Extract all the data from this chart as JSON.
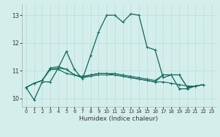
{
  "title": "",
  "xlabel": "Humidex (Indice chaleur)",
  "bg_color": "#d4eeeb",
  "line_color": "#1a6b62",
  "grid_color": "#b8ddd8",
  "xlim": [
    -0.5,
    23.5
  ],
  "ylim": [
    9.7,
    13.4
  ],
  "yticks": [
    10,
    11,
    12,
    13
  ],
  "xticks": [
    0,
    1,
    2,
    3,
    4,
    5,
    6,
    7,
    8,
    9,
    10,
    11,
    12,
    13,
    14,
    15,
    16,
    17,
    18,
    19,
    20,
    21,
    22,
    23
  ],
  "series": [
    [
      10.4,
      9.95,
      10.6,
      10.6,
      11.1,
      11.7,
      11.05,
      10.7,
      11.55,
      12.4,
      13.0,
      13.0,
      12.75,
      13.05,
      13.0,
      11.85,
      11.75,
      10.75,
      10.85,
      10.35,
      10.35,
      10.45,
      10.5
    ],
    [
      10.4,
      10.55,
      10.65,
      11.05,
      11.1,
      11.05,
      10.85,
      10.75,
      10.85,
      10.9,
      10.9,
      10.9,
      10.85,
      10.8,
      10.75,
      10.7,
      10.65,
      10.85,
      10.85,
      10.85,
      10.4,
      10.45,
      10.5
    ],
    [
      10.4,
      10.55,
      10.65,
      11.05,
      11.05,
      10.9,
      10.85,
      10.8,
      10.85,
      10.9,
      10.9,
      10.85,
      10.8,
      10.75,
      10.7,
      10.65,
      10.6,
      10.6,
      10.55,
      10.5,
      10.45,
      10.45,
      10.5
    ],
    [
      10.4,
      10.55,
      10.65,
      11.1,
      11.15,
      11.05,
      10.85,
      10.75,
      10.8,
      10.85,
      10.85,
      10.85,
      10.8,
      10.75,
      10.7,
      10.65,
      10.6,
      10.85,
      10.85,
      10.85,
      10.4,
      10.45,
      10.5
    ]
  ],
  "linewidths": [
    1.0,
    0.9,
    0.9,
    0.9
  ],
  "markersize": 2.5
}
